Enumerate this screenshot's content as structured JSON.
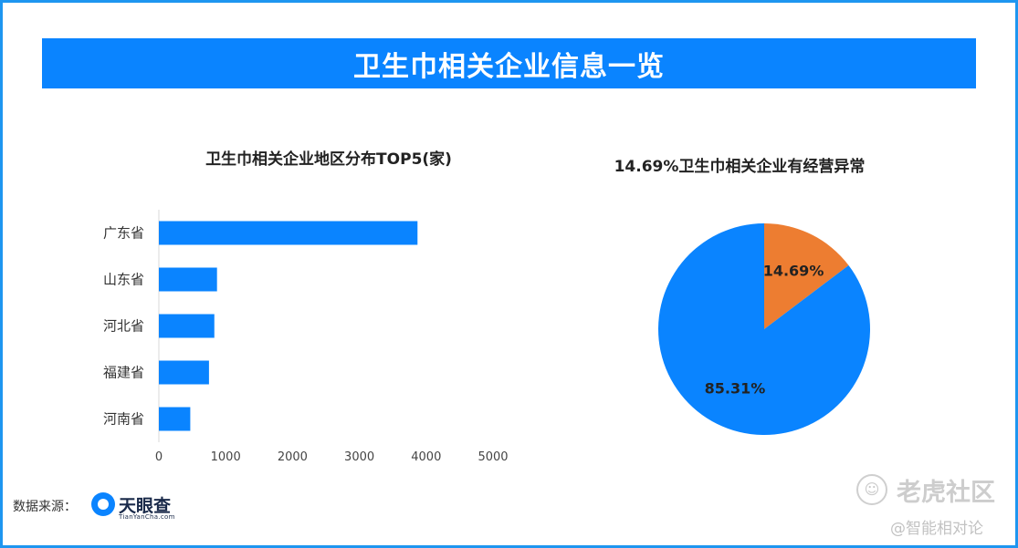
{
  "banner_title": "卫生巾相关企业信息一览",
  "source_label": "数据来源：",
  "logo": {
    "name": "天眼查",
    "domain": "TianYanCha.com"
  },
  "watermark": {
    "icon": "tiger-paw-icon",
    "main": "老虎社区",
    "sub": "@智能相对论"
  },
  "colors": {
    "banner": "#0a84ff",
    "bar": "#0a84ff",
    "pie_blue": "#0a84ff",
    "pie_orange": "#ed7d31",
    "frame": "#1e96f0"
  },
  "chart_data": [
    {
      "type": "bar",
      "orientation": "horizontal",
      "title": "卫生巾相关企业地区分布TOP5(家)",
      "categories": [
        "广东省",
        "山东省",
        "河北省",
        "福建省",
        "河南省"
      ],
      "values": [
        3870,
        870,
        830,
        750,
        470
      ],
      "xlim": [
        0,
        5000
      ],
      "xticks": [
        "0",
        "1000",
        "2000",
        "3000",
        "4000",
        "5000"
      ],
      "grid": false,
      "legend": "none"
    },
    {
      "type": "pie",
      "title": "14.69%卫生巾相关企业有经营异常",
      "slices": [
        {
          "value": 14.69,
          "label": "14.69%",
          "color": "#ed7d31"
        },
        {
          "value": 85.31,
          "label": "85.31%",
          "color": "#0a84ff"
        }
      ],
      "legend": "none"
    }
  ]
}
